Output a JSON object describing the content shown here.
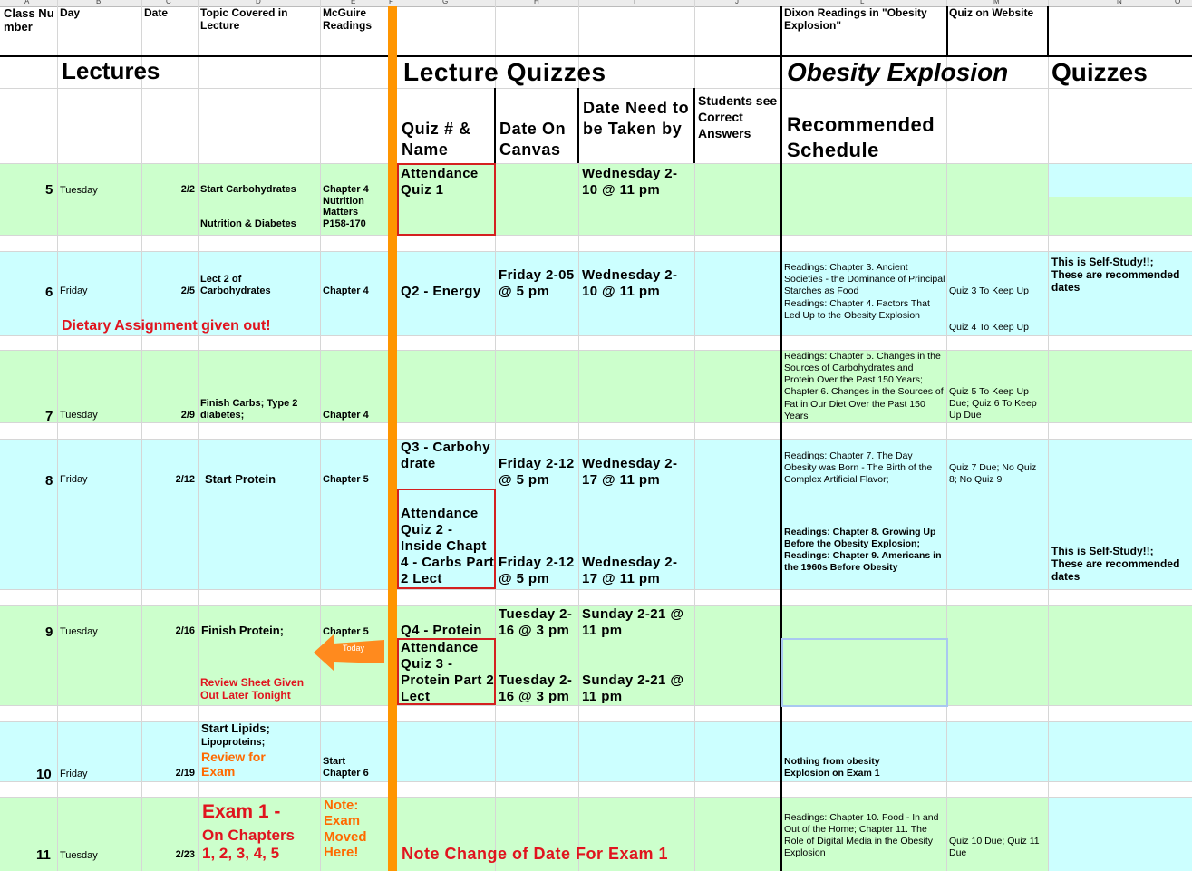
{
  "column_letters": [
    "A",
    "B",
    "C",
    "D",
    "E",
    "F",
    "G",
    "H",
    "I",
    "J",
    "L",
    "M",
    "N",
    "O"
  ],
  "header": {
    "class_number": "Class Number",
    "day": "Day",
    "date": "Date",
    "topic": "Topic Covered in Lecture",
    "reading": "McGuire Readings",
    "dixon": "Dixon Readings in \"Obesity Explosion\"",
    "website": "Quiz on Website"
  },
  "section_titles": {
    "lectures": "Lectures",
    "lecture_quizzes": "Lecture Quizzes",
    "obesity_italic": "Obesity Explosion",
    "obesity_rest": "Quizzes"
  },
  "quiz_headers": {
    "quiz": "Quiz # & Name",
    "canvas": "Date On Canvas",
    "deadline": "Date Need to be Taken by",
    "answers": "Students see Correct Answers",
    "schedule": "Recommended Schedule"
  },
  "classes": [
    {
      "number": 5,
      "day": "Tuesday",
      "date": "2/2",
      "topic": "Start Carbohydrates",
      "topic_2": "Nutrition & Diabetes",
      "reading": "Chapter 4 Nutrition Matters P158-170",
      "quiz": "Attendance Quiz 1",
      "deadline": "Wednesday 2-10 @ 11 pm"
    },
    {
      "number": 6,
      "day": "Friday",
      "date": "2/5",
      "topic": "Lect 2 of Carbohydrates",
      "reading": "Chapter 4",
      "note": "Dietary Assignment given out!",
      "quiz": "Q2 - Energy",
      "canvas": "Friday 2-05 @ 5 pm",
      "deadline": "Wednesday 2-10 @ 11 pm",
      "obesity": "Readings: Chapter 3. Ancient Societies - the Dominance of Principal Starches as Food",
      "obesity_2": "Readings: Chapter 4. Factors That Led Up to the Obesity Explosion",
      "website": "Quiz 3 To Keep Up",
      "website_2": "Quiz 4 To Keep Up",
      "self_study": "This is Self-Study!!; These are recommended dates"
    },
    {
      "number": 7,
      "day": "Tuesday",
      "date": "2/9",
      "topic": "Finish Carbs; Type 2 diabetes;",
      "reading": "Chapter 4",
      "obesity": "Readings: Chapter 5. Changes in the Sources of Carbohydrates and Protein Over the Past 150 Years; Chapter 6. Changes in the Sources of Fat in Our Diet Over the Past 150 Years",
      "website": "Quiz 5 To Keep Up Due; Quiz 6 To Keep Up Due"
    },
    {
      "number": 8,
      "day": "Friday",
      "date": "2/12",
      "topic": "Start Protein",
      "reading": "Chapter 5",
      "quiz": "Q3 - Carbohydrate",
      "canvas": "Friday 2-12 @ 5 pm",
      "deadline": "Wednesday 2-17 @ 11 pm",
      "quiz_2": "Attendance Quiz 2 - Inside Chapt 4 - Carbs Part 2 Lect",
      "canvas_2": "Friday 2-12 @ 5 pm",
      "deadline_2": "Wednesday 2-17 @ 11 pm",
      "obesity": "Readings: Chapter 7. The Day Obesity was Born - The Birth of the Complex Artificial Flavor;",
      "website": "Quiz 7 Due; No Quiz 8; No Quiz 9",
      "obesity_2": "Readings: Chapter 8. Growing Up Before the Obesity Explosion; Readings: Chapter 9. Americans in the 1960s Before Obesity",
      "self_study": "This is Self-Study!!; These are recommended dates"
    },
    {
      "number": 9,
      "day": "Tuesday",
      "date": "2/16",
      "topic": "Finish Protein;",
      "reading": "Chapter 5",
      "note": "Review Sheet Given Out Later Tonight",
      "marker": "Today",
      "quiz": "Q4 - Protein",
      "canvas": "Tuesday 2-16 @ 3 pm",
      "deadline": "Sunday 2-21 @ 11 pm",
      "quiz_2": "Attendance Quiz 3 - Protein Part 2 Lect",
      "canvas_2": "Tuesday 2-16 @ 3 pm",
      "deadline_2": "Sunday 2-21 @ 11 pm"
    },
    {
      "number": 10,
      "day": "Friday",
      "date": "2/19",
      "topic": "Start Lipids;",
      "topic_2": "Lipoproteins;",
      "note": "Review for Exam",
      "reading": "Start Chapter 6",
      "obesity": "Nothing from obesity Explosion on Exam 1"
    },
    {
      "number": 11,
      "day": "Tuesday",
      "date": "2/23",
      "topic": "Exam 1 -",
      "topic_2": "On Chapters 1, 2, 3, 4, 5",
      "reading": "Note: Exam Moved Here!",
      "note": "Note Change of Date For Exam 1",
      "obesity": "Readings: Chapter 10. Food - In and Out of the Home; Chapter 11. The Role of Digital Media in the Obesity Explosion",
      "website": "Quiz 10 Due; Quiz 11 Due"
    }
  ]
}
